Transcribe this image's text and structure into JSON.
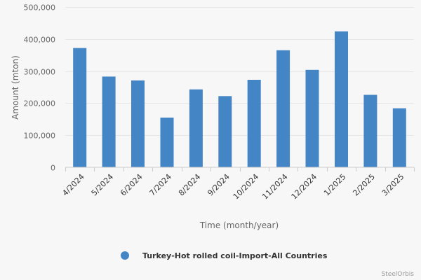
{
  "chart_data": {
    "type": "bar",
    "categories": [
      "4/2024",
      "5/2024",
      "6/2024",
      "7/2024",
      "8/2024",
      "9/2024",
      "10/2024",
      "11/2024",
      "12/2024",
      "1/2025",
      "2/2025",
      "3/2025"
    ],
    "series": [
      {
        "name": "Turkey-Hot rolled coil-Import-All Countries",
        "values": [
          372000,
          283000,
          271000,
          155000,
          243000,
          222000,
          273000,
          365000,
          304000,
          424000,
          226000,
          184000
        ],
        "color": "#4485c5"
      }
    ],
    "xlabel": "Time (month/year)",
    "ylabel": "Amount (mton)",
    "ylim": [
      0,
      500000
    ],
    "yticks": [
      0,
      100000,
      200000,
      300000,
      400000,
      500000
    ],
    "ytick_labels": [
      "0",
      "100,000",
      "200,000",
      "300,000",
      "400,000",
      "500,000"
    ],
    "grid": true,
    "legend_position": "bottom-center"
  },
  "credits": "SteelOrbis"
}
